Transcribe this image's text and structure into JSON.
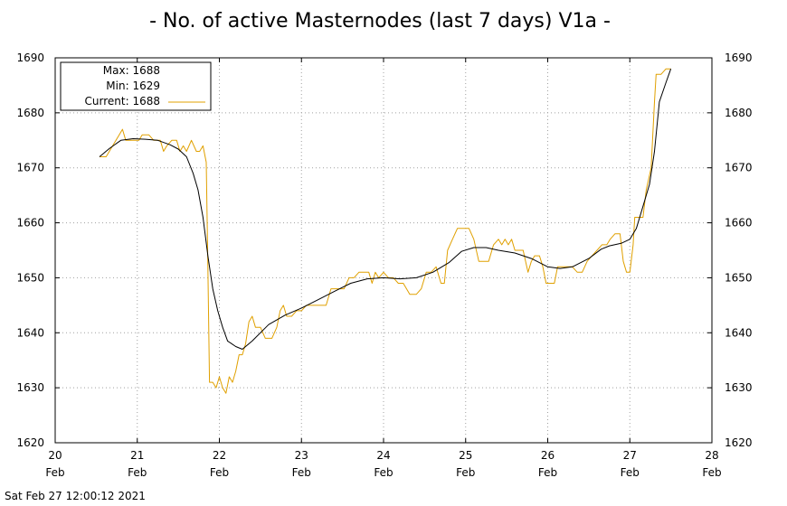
{
  "title": "- No. of active Masternodes (last 7 days) V1a -",
  "footer": "Sat Feb 27 12:00:12 2021",
  "legend": {
    "max_label": "Max: 1688",
    "min_label": "Min: 1629",
    "current_label": "Current: 1688"
  },
  "colors": {
    "raw_series": "#e0a000",
    "smoothed_series": "#000000",
    "grid": "#a0a0a0",
    "axis": "#000000"
  },
  "chart_data": {
    "type": "line",
    "title": "- No. of active Masternodes (last 7 days) V1a -",
    "xlabel": "",
    "ylabel": "",
    "xlim": [
      20,
      28
    ],
    "ylim": [
      1620,
      1690
    ],
    "grid": true,
    "legend_position": "top-left",
    "x_ticks": [
      {
        "value": 20,
        "label": "20",
        "sub": "Feb"
      },
      {
        "value": 21,
        "label": "21",
        "sub": "Feb"
      },
      {
        "value": 22,
        "label": "22",
        "sub": "Feb"
      },
      {
        "value": 23,
        "label": "23",
        "sub": "Feb"
      },
      {
        "value": 24,
        "label": "24",
        "sub": "Feb"
      },
      {
        "value": 25,
        "label": "25",
        "sub": "Feb"
      },
      {
        "value": 26,
        "label": "26",
        "sub": "Feb"
      },
      {
        "value": 27,
        "label": "27",
        "sub": "Feb"
      },
      {
        "value": 28,
        "label": "28",
        "sub": "Feb"
      }
    ],
    "y_ticks": [
      1620,
      1630,
      1640,
      1650,
      1660,
      1670,
      1680,
      1690
    ],
    "series": [
      {
        "name": "Current",
        "color": "#e0a000",
        "points": [
          [
            20.54,
            1672
          ],
          [
            20.62,
            1672
          ],
          [
            20.7,
            1674
          ],
          [
            20.78,
            1676
          ],
          [
            20.82,
            1677
          ],
          [
            20.86,
            1675
          ],
          [
            20.94,
            1675
          ],
          [
            21.02,
            1675
          ],
          [
            21.06,
            1676
          ],
          [
            21.14,
            1676
          ],
          [
            21.2,
            1675
          ],
          [
            21.28,
            1675
          ],
          [
            21.32,
            1673
          ],
          [
            21.36,
            1674
          ],
          [
            21.42,
            1675
          ],
          [
            21.48,
            1675
          ],
          [
            21.52,
            1673
          ],
          [
            21.56,
            1674
          ],
          [
            21.6,
            1673
          ],
          [
            21.66,
            1675
          ],
          [
            21.72,
            1673
          ],
          [
            21.76,
            1673
          ],
          [
            21.8,
            1674
          ],
          [
            21.84,
            1671
          ],
          [
            21.86,
            1652
          ],
          [
            21.88,
            1631
          ],
          [
            21.92,
            1631
          ],
          [
            21.96,
            1630
          ],
          [
            22.0,
            1632
          ],
          [
            22.04,
            1630
          ],
          [
            22.08,
            1629
          ],
          [
            22.12,
            1632
          ],
          [
            22.16,
            1631
          ],
          [
            22.2,
            1633
          ],
          [
            22.24,
            1636
          ],
          [
            22.28,
            1636
          ],
          [
            22.32,
            1638
          ],
          [
            22.36,
            1642
          ],
          [
            22.4,
            1643
          ],
          [
            22.44,
            1641
          ],
          [
            22.5,
            1641
          ],
          [
            22.56,
            1639
          ],
          [
            22.64,
            1639
          ],
          [
            22.7,
            1641
          ],
          [
            22.74,
            1644
          ],
          [
            22.78,
            1645
          ],
          [
            22.82,
            1643
          ],
          [
            22.88,
            1643
          ],
          [
            22.94,
            1644
          ],
          [
            23.0,
            1644
          ],
          [
            23.06,
            1645
          ],
          [
            23.12,
            1645
          ],
          [
            23.2,
            1645
          ],
          [
            23.26,
            1645
          ],
          [
            23.3,
            1645
          ],
          [
            23.36,
            1648
          ],
          [
            23.44,
            1648
          ],
          [
            23.52,
            1648
          ],
          [
            23.58,
            1650
          ],
          [
            23.64,
            1650
          ],
          [
            23.7,
            1651
          ],
          [
            23.76,
            1651
          ],
          [
            23.82,
            1651
          ],
          [
            23.86,
            1649
          ],
          [
            23.9,
            1651
          ],
          [
            23.94,
            1650
          ],
          [
            24.0,
            1651
          ],
          [
            24.06,
            1650
          ],
          [
            24.12,
            1650
          ],
          [
            24.18,
            1649
          ],
          [
            24.24,
            1649
          ],
          [
            24.28,
            1648
          ],
          [
            24.32,
            1647
          ],
          [
            24.4,
            1647
          ],
          [
            24.46,
            1648
          ],
          [
            24.52,
            1651
          ],
          [
            24.58,
            1651
          ],
          [
            24.64,
            1652
          ],
          [
            24.7,
            1649
          ],
          [
            24.74,
            1649
          ],
          [
            24.78,
            1655
          ],
          [
            24.84,
            1657
          ],
          [
            24.9,
            1659
          ],
          [
            24.96,
            1659
          ],
          [
            25.04,
            1659
          ],
          [
            25.1,
            1657
          ],
          [
            25.16,
            1653
          ],
          [
            25.22,
            1653
          ],
          [
            25.28,
            1653
          ],
          [
            25.34,
            1656
          ],
          [
            25.4,
            1657
          ],
          [
            25.44,
            1656
          ],
          [
            25.48,
            1657
          ],
          [
            25.52,
            1656
          ],
          [
            25.56,
            1657
          ],
          [
            25.6,
            1655
          ],
          [
            25.66,
            1655
          ],
          [
            25.7,
            1655
          ],
          [
            25.76,
            1651
          ],
          [
            25.8,
            1653
          ],
          [
            25.84,
            1654
          ],
          [
            25.9,
            1654
          ],
          [
            25.94,
            1652
          ],
          [
            25.98,
            1649
          ],
          [
            26.04,
            1649
          ],
          [
            26.08,
            1649
          ],
          [
            26.12,
            1652
          ],
          [
            26.18,
            1652
          ],
          [
            26.24,
            1652
          ],
          [
            26.3,
            1652
          ],
          [
            26.36,
            1651
          ],
          [
            26.42,
            1651
          ],
          [
            26.48,
            1653
          ],
          [
            26.54,
            1654
          ],
          [
            26.6,
            1655
          ],
          [
            26.66,
            1656
          ],
          [
            26.72,
            1656
          ],
          [
            26.76,
            1657
          ],
          [
            26.82,
            1658
          ],
          [
            26.88,
            1658
          ],
          [
            26.92,
            1653
          ],
          [
            26.96,
            1651
          ],
          [
            27.0,
            1651
          ],
          [
            27.04,
            1656
          ],
          [
            27.06,
            1661
          ],
          [
            27.1,
            1661
          ],
          [
            27.16,
            1661
          ],
          [
            27.2,
            1666
          ],
          [
            27.26,
            1670
          ],
          [
            27.3,
            1682
          ],
          [
            27.32,
            1687
          ],
          [
            27.38,
            1687
          ],
          [
            27.44,
            1688
          ],
          [
            27.5,
            1688
          ]
        ]
      },
      {
        "name": "",
        "color": "#000000",
        "points": [
          [
            20.54,
            1672
          ],
          [
            20.66,
            1673.5
          ],
          [
            20.8,
            1675
          ],
          [
            20.95,
            1675.3
          ],
          [
            21.1,
            1675.2
          ],
          [
            21.25,
            1675
          ],
          [
            21.4,
            1674.2
          ],
          [
            21.5,
            1673.4
          ],
          [
            21.6,
            1672
          ],
          [
            21.68,
            1669
          ],
          [
            21.74,
            1666
          ],
          [
            21.8,
            1661
          ],
          [
            21.86,
            1654
          ],
          [
            21.92,
            1648
          ],
          [
            21.98,
            1644
          ],
          [
            22.04,
            1641
          ],
          [
            22.1,
            1638.5
          ],
          [
            22.2,
            1637.5
          ],
          [
            22.28,
            1637
          ],
          [
            22.4,
            1638.5
          ],
          [
            22.6,
            1641.5
          ],
          [
            22.8,
            1643.2
          ],
          [
            23.0,
            1644.5
          ],
          [
            23.2,
            1646
          ],
          [
            23.4,
            1647.5
          ],
          [
            23.6,
            1649
          ],
          [
            23.8,
            1649.8
          ],
          [
            24.0,
            1650
          ],
          [
            24.2,
            1649.8
          ],
          [
            24.4,
            1650
          ],
          [
            24.6,
            1651
          ],
          [
            24.8,
            1652.8
          ],
          [
            24.95,
            1654.8
          ],
          [
            25.1,
            1655.5
          ],
          [
            25.25,
            1655.5
          ],
          [
            25.4,
            1655
          ],
          [
            25.6,
            1654.5
          ],
          [
            25.8,
            1653.5
          ],
          [
            26.0,
            1652
          ],
          [
            26.15,
            1651.7
          ],
          [
            26.3,
            1652
          ],
          [
            26.5,
            1653.5
          ],
          [
            26.65,
            1655.2
          ],
          [
            26.75,
            1655.8
          ],
          [
            26.9,
            1656.3
          ],
          [
            27.0,
            1657
          ],
          [
            27.08,
            1659
          ],
          [
            27.16,
            1663
          ],
          [
            27.24,
            1667
          ],
          [
            27.3,
            1673
          ],
          [
            27.36,
            1682
          ],
          [
            27.44,
            1685.5
          ],
          [
            27.5,
            1688
          ]
        ]
      }
    ]
  }
}
